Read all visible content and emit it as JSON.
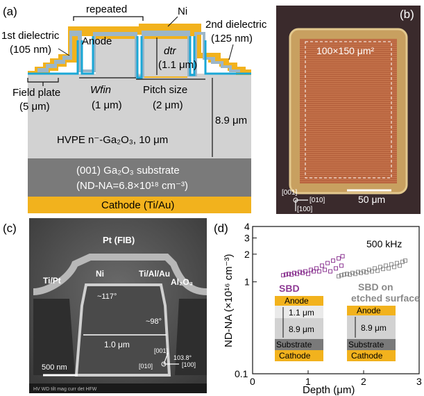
{
  "panel_a": {
    "label": "(a)",
    "repeated": "repeated",
    "ni": "Ni",
    "first_dielectric": "1st dielectric",
    "first_dielectric_thk": "(105 nm)",
    "second_dielectric": "2nd dielectric",
    "second_dielectric_thk": "(125 nm)",
    "anode": "Anode",
    "dtr": "dtr",
    "dtr_val": "(1.1 μm)",
    "field_plate": "Field plate",
    "field_plate_val": "(5 μm)",
    "wfin": "Wfin",
    "wfin_val": "(1 μm)",
    "pitch": "Pitch size",
    "pitch_val": "(2 μm)",
    "depth": "8.9 μm",
    "hvpe": "HVPE n⁻-Ga₂O₃, 10 μm",
    "substrate": "(001) Ga₂O₃ substrate",
    "doping": "(ND-NA=6.8×10¹⁸ cm⁻³)",
    "cathode": "Cathode (Ti/Au)"
  },
  "panel_b": {
    "label": "(b)",
    "area": "100×150 μm²",
    "scale": "50 μm",
    "axis1": "[001]",
    "axis2": "[010]",
    "axis3": "[100]"
  },
  "panel_c": {
    "label": "(c)",
    "pt_fib": "Pt (FIB)",
    "ni": "Ni",
    "tialau": "Ti/Al/Au",
    "tipt": "Ti/Pt",
    "al2o3": "Al₂O₃",
    "angle1": "~117°",
    "angle2": "~98°",
    "width": "1.0 μm",
    "scale": "500 nm",
    "axis1": "[001]",
    "axis_angle": "103.8°",
    "axis2": "[010]",
    "axis3": "[100]",
    "footer": "HV  WD  tilt  mag  curr  det  HFW"
  },
  "panel_d": {
    "label": "(d)",
    "freq": "500 kHz",
    "sbd": "SBD",
    "sbd_etched": "SBD on",
    "sbd_etched2": "etched surface",
    "anode": "Anode",
    "d1": "1.1 μm",
    "d2": "8.9 μm",
    "substrate": "Substrate",
    "cathode": "Cathode",
    "colors": {
      "sbd": "#8e3a94",
      "etched": "#8a8a8a"
    }
  },
  "chart_data": {
    "type": "scatter",
    "title": "",
    "xlabel": "Depth (μm)",
    "ylabel": "ND-NA (×10¹⁶ cm⁻³)",
    "xlim": [
      0,
      3
    ],
    "ylim": [
      0.1,
      4
    ],
    "yscale": "log",
    "x_ticks": [
      "0",
      "1",
      "2",
      "3"
    ],
    "y_ticks": [
      "0.1",
      "1",
      "2",
      "3",
      "4"
    ],
    "series": [
      {
        "name": "SBD",
        "color": "#8e3a94",
        "x": [
          0.55,
          0.6,
          0.65,
          0.7,
          0.75,
          0.8,
          0.85,
          0.9,
          0.95,
          1.0,
          1.05,
          1.1,
          1.15,
          1.2,
          1.25,
          1.3,
          1.35,
          1.4,
          1.45,
          1.5,
          1.55,
          1.6,
          1.62
        ],
        "y": [
          1.18,
          1.2,
          1.22,
          1.2,
          1.25,
          1.22,
          1.28,
          1.25,
          1.3,
          1.22,
          1.35,
          1.3,
          1.4,
          1.3,
          1.5,
          1.35,
          1.6,
          1.3,
          1.7,
          1.4,
          1.8,
          1.5,
          1.9
        ]
      },
      {
        "name": "SBD on etched surface",
        "color": "#8a8a8a",
        "x": [
          1.55,
          1.6,
          1.65,
          1.7,
          1.75,
          1.8,
          1.85,
          1.9,
          1.95,
          2.0,
          2.05,
          2.1,
          2.15,
          2.2,
          2.25,
          2.3,
          2.35,
          2.4,
          2.45,
          2.5,
          2.55,
          2.6,
          2.65,
          2.7,
          2.75
        ],
        "y": [
          1.15,
          1.18,
          1.2,
          1.22,
          1.2,
          1.25,
          1.22,
          1.28,
          1.25,
          1.3,
          1.27,
          1.35,
          1.3,
          1.4,
          1.32,
          1.45,
          1.38,
          1.5,
          1.4,
          1.55,
          1.45,
          1.6,
          1.5,
          1.65,
          1.7
        ]
      }
    ]
  }
}
